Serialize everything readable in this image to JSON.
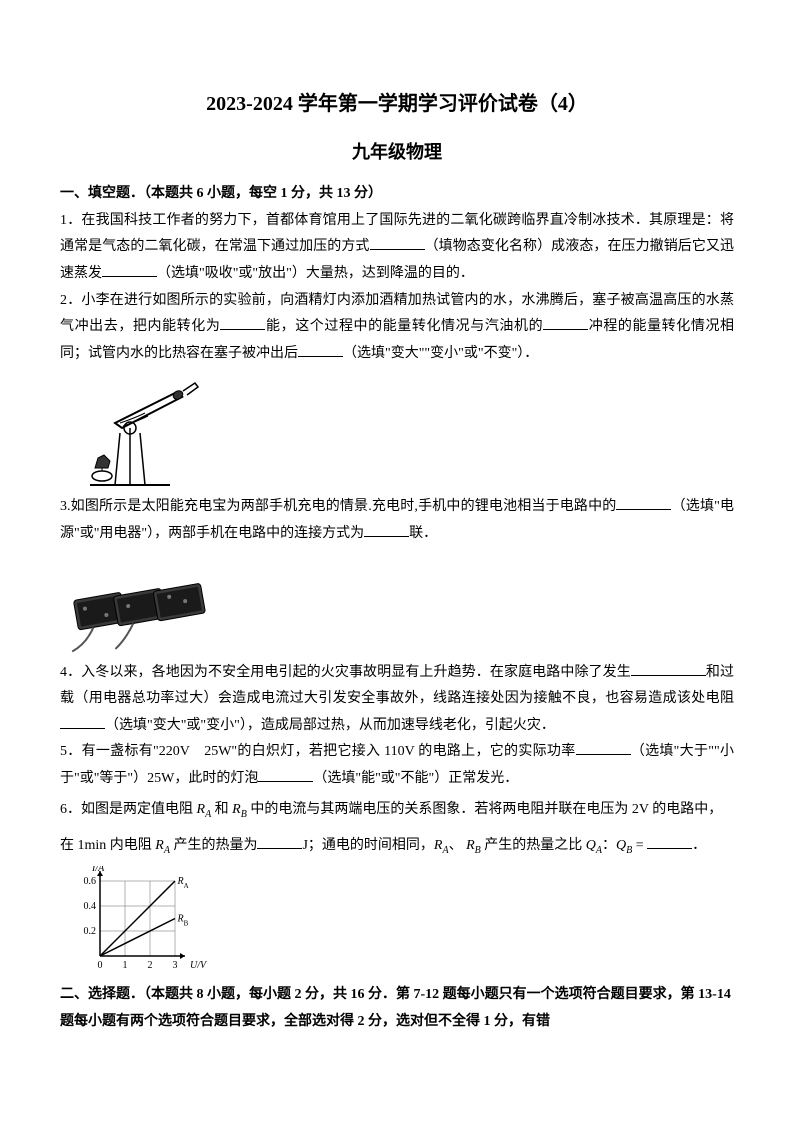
{
  "header": {
    "title_main": "2023-2024 学年第一学期学习评价试卷（4）",
    "title_sub": "九年级物理"
  },
  "section1": {
    "header": "一、填空题．（本题共 6 小题，每空 1 分，共 13 分）",
    "q1": {
      "text1": "1．在我国科技工作者的努力下，首都体育馆用上了国际先进的二氧化碳跨临界直冷制冰技术．其原理是：将通常是气态的二氧化碳，在常温下通过加压的方式",
      "hint1": "（填物态变化名称）成液态，在压力撤销后它又迅速蒸发",
      "hint2": "（选填\"吸收\"或\"放出\"）大量热，达到降温的目的．"
    },
    "q2": {
      "text1": "2．小李在进行如图所示的实验前，向酒精灯内添加酒精加热试管内的水，水沸腾后，塞子被高温高压的水蒸气冲出去，把内能转化为",
      "text2": "能，这个过程中的能量转化情况与汽油机的",
      "text3": "冲程的能量转化情况相同；试管内水的比热容在塞子被冲出后",
      "hint1": "（选填\"变大\"\"变小\"或\"不变\"）．"
    },
    "q3": {
      "text1": "3.如图所示是太阳能充电宝为两部手机充电的情景.充电时,手机中的锂电池相当于电路中的",
      "hint1": "（选填\"电源\"或\"用电器\"），两部手机在电路中的连接方式为",
      "text2": "联．"
    },
    "q4": {
      "text1": "4．入冬以来，各地因为不安全用电引起的火灾事故明显有上升趋势．在家庭电路中除了发生",
      "text2": "和过载（用电器总功率过大）会造成电流过大引发安全事故外，线路连接处因为接触不良，也容易造成该处电阻",
      "hint1": "（选填\"变大\"或\"变小\"），造成局部过热，从而加速导线老化，引起火灾．"
    },
    "q5": {
      "text1": "5．有一盏标有\"220V　25W\"的白炽灯，若把它接入 110V 的电路上，它的实际功率",
      "hint1": "（选填\"大于\"\"小于\"或\"等于\"）25W，此时的灯泡",
      "hint2": "（选填\"能\"或\"不能\"）正常发光．"
    },
    "q6": {
      "text1_prefix": "6．如图是两定值电阻 ",
      "text1_mid": " 和 ",
      "text1_suffix": " 中的电流与其两端电压的关系图象．若将两电阻并联在电压为 2V 的电路中，",
      "text2_prefix": "在 1min 内电阻 ",
      "text2_mid": " 产生的热量为",
      "text2_suffix1": "J；通电的时间相同，",
      "text2_suffix2": "、",
      "text2_suffix3": " 产生的热量之比 ",
      "text2_eq": "：",
      "text2_eq2": " = ",
      "text2_end": "．",
      "chart": {
        "type": "line",
        "xlabel": "U/V",
        "ylabel": "I/A",
        "xlim": [
          0,
          3
        ],
        "ylim": [
          0,
          0.6
        ],
        "xticks": [
          0,
          1,
          2,
          3
        ],
        "yticks": [
          0,
          0.2,
          0.4,
          0.6
        ],
        "background_color": "#ffffff",
        "grid_color": "#666666",
        "axis_color": "#000000",
        "line_color": "#000000",
        "label_fontsize": 10,
        "series": [
          {
            "name": "R_A",
            "points": [
              [
                0,
                0
              ],
              [
                3,
                0.6
              ]
            ],
            "label_pos": [
              3.1,
              0.6
            ]
          },
          {
            "name": "R_B",
            "points": [
              [
                0,
                0
              ],
              [
                3,
                0.3
              ]
            ],
            "label_pos": [
              3.1,
              0.3
            ]
          }
        ]
      }
    }
  },
  "section2": {
    "header": "二、选择题．（本题共 8 小题，每小题 2 分，共 16 分．第 7-12 题每小题只有一个选项符合题目要求，第 13-14 题每小题有两个选项符合题目要求，全部选对得 2 分，选对但不全得 1 分，有错"
  }
}
